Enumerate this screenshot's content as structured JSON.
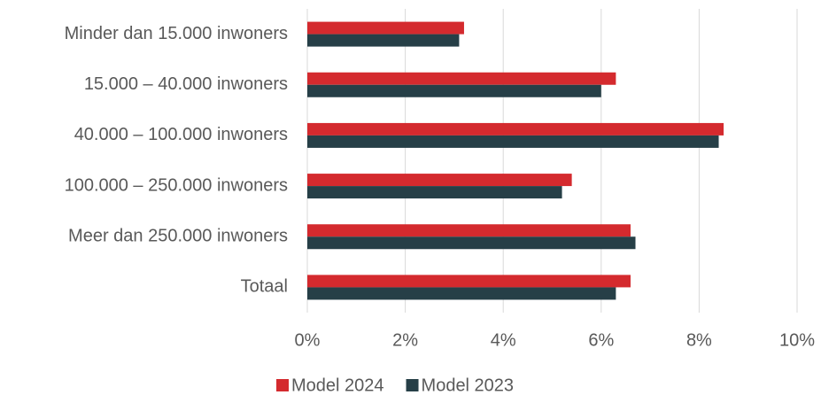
{
  "chart_data": {
    "type": "hbar",
    "categories": [
      "Minder dan 15.000 inwoners",
      "15.000 – 40.000 inwoners",
      "40.000 – 100.000 inwoners",
      "100.000 – 250.000 inwoners",
      "Meer dan 250.000 inwoners",
      "Totaal"
    ],
    "series": [
      {
        "name": "Model 2024",
        "color": "#d42a2e",
        "values": [
          3.2,
          6.3,
          8.5,
          5.4,
          6.6,
          6.6
        ]
      },
      {
        "name": "Model 2023",
        "color": "#263f47",
        "values": [
          3.1,
          6.0,
          8.4,
          5.2,
          6.7,
          6.3
        ]
      }
    ],
    "xlim": [
      0,
      10
    ],
    "xticks": [
      {
        "value": 0,
        "label": "0%"
      },
      {
        "value": 2,
        "label": "2%"
      },
      {
        "value": 4,
        "label": "4%"
      },
      {
        "value": 6,
        "label": "6%"
      },
      {
        "value": 8,
        "label": "8%"
      },
      {
        "value": 10,
        "label": "10%"
      }
    ],
    "grid": true,
    "legend": "bottom"
  }
}
